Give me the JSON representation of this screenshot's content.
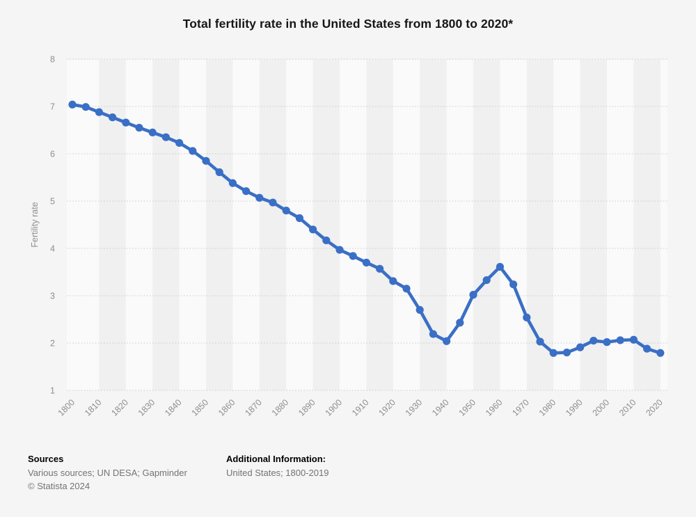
{
  "page": {
    "background": "#f5f5f6"
  },
  "header": {
    "title": "Total fertility rate in the United States from 1800 to 2020*"
  },
  "chart_data": {
    "type": "line",
    "title": "Total fertility rate in the United States from 1800 to 2020*",
    "xlabel": "",
    "ylabel": "Fertility rate",
    "ylim": [
      1,
      8
    ],
    "yticks": [
      1,
      2,
      3,
      4,
      5,
      6,
      7,
      8
    ],
    "x_tick_labels": [
      "1800",
      "1810",
      "1820",
      "1830",
      "1840",
      "1850",
      "1860",
      "1870",
      "1880",
      "1890",
      "1900",
      "1910",
      "1920",
      "1930",
      "1940",
      "1950",
      "1960",
      "1970",
      "1980",
      "1990",
      "2000",
      "2010",
      "2020"
    ],
    "grid": "horizontal-dotted",
    "legend": "none",
    "background_bands": "alternating vertical decade bands",
    "series": [
      {
        "name": "Fertility rate",
        "x": [
          1800,
          1805,
          1810,
          1815,
          1820,
          1825,
          1830,
          1835,
          1840,
          1845,
          1850,
          1855,
          1860,
          1865,
          1870,
          1875,
          1880,
          1885,
          1890,
          1895,
          1900,
          1905,
          1910,
          1915,
          1920,
          1925,
          1930,
          1935,
          1940,
          1945,
          1950,
          1955,
          1960,
          1965,
          1970,
          1975,
          1980,
          1985,
          1990,
          1995,
          2000,
          2005,
          2010,
          2015,
          2020
        ],
        "values": [
          7.04,
          6.99,
          6.88,
          6.77,
          6.66,
          6.55,
          6.45,
          6.35,
          6.23,
          6.06,
          5.85,
          5.61,
          5.38,
          5.21,
          5.07,
          4.97,
          4.8,
          4.64,
          4.4,
          4.17,
          3.97,
          3.84,
          3.7,
          3.57,
          3.31,
          3.15,
          2.7,
          2.19,
          2.04,
          2.43,
          3.02,
          3.33,
          3.61,
          3.24,
          2.54,
          2.03,
          1.79,
          1.8,
          1.91,
          2.05,
          2.02,
          2.06,
          2.07,
          1.88,
          1.79
        ]
      }
    ],
    "colors": {
      "line": "#3A6FC5",
      "marker": "#3A6FC5",
      "gridline": "#c9c9c9",
      "band_light": "#fafafa",
      "band_dark": "#f0f0f1",
      "tick_text": "#8e8e8e",
      "title_text": "#161616"
    }
  },
  "footer": {
    "sources_label": "Sources",
    "sources_text": "Various sources; UN DESA; Gapminder",
    "copyright": "© Statista 2024",
    "additional_label": "Additional Information:",
    "additional_text": "United States; 1800-2019"
  }
}
